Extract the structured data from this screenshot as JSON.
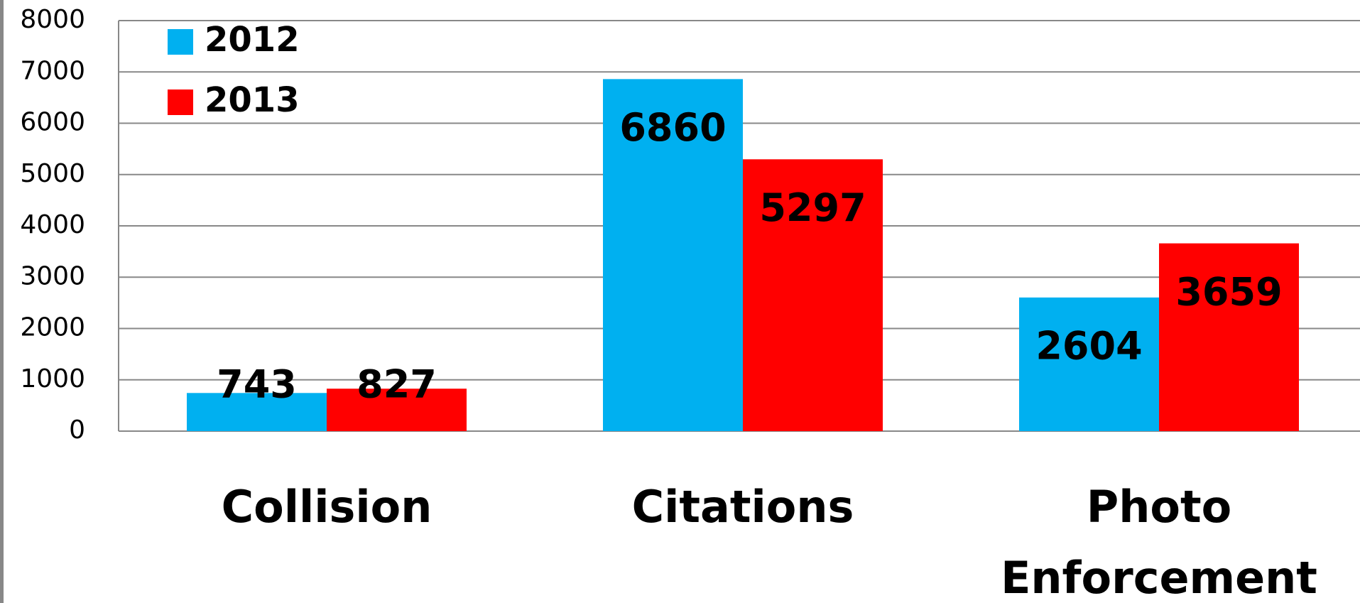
{
  "chart_data": {
    "type": "bar",
    "categories": [
      "Collision",
      "Citations",
      "Photo Enforcement"
    ],
    "series": [
      {
        "name": "2012",
        "color": "#00b0f0",
        "values": [
          743,
          6860,
          2604
        ]
      },
      {
        "name": "2013",
        "color": "#ff0000",
        "values": [
          827,
          5297,
          3659
        ]
      }
    ],
    "ylim": [
      0,
      8000
    ],
    "yticks": [
      0,
      1000,
      2000,
      3000,
      4000,
      5000,
      6000,
      7000,
      8000
    ],
    "grid": true,
    "legend": "upper left"
  }
}
